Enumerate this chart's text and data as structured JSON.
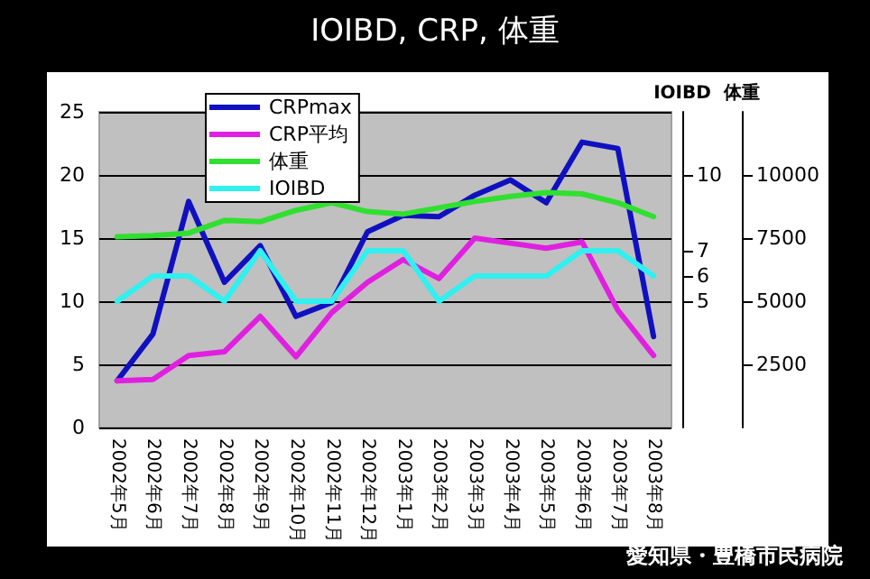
{
  "chart_data": {
    "type": "line",
    "title": "IOIBD, CRP, 体重",
    "categories": [
      "2002年5月",
      "2002年6月",
      "2002年7月",
      "2002年8月",
      "2002年9月",
      "2002年10月",
      "2002年11月",
      "2002年12月",
      "2003年1月",
      "2003年2月",
      "2003年3月",
      "2003年4月",
      "2003年5月",
      "2003年6月",
      "2003年7月",
      "2003年8月"
    ],
    "series": [
      {
        "name": "CRPmax",
        "color": "#1010c0",
        "values": [
          3.7,
          7.4,
          17.9,
          11.5,
          14.4,
          8.8,
          9.9,
          15.5,
          16.8,
          16.7,
          18.4,
          19.6,
          17.8,
          22.6,
          22.1,
          7.2
        ]
      },
      {
        "name": "CRP平均",
        "color": "#e020e0",
        "values": [
          3.7,
          3.8,
          5.7,
          6.0,
          8.8,
          5.6,
          9.1,
          11.5,
          13.3,
          11.8,
          15.0,
          14.6,
          14.2,
          14.7,
          9.3,
          5.7
        ]
      },
      {
        "name": "体重",
        "color": "#30e030",
        "axis": "y3",
        "values": [
          7550,
          7600,
          7700,
          8200,
          8150,
          8600,
          8900,
          8550,
          8450,
          8700,
          8950,
          9150,
          9300,
          9250,
          8900,
          8350
        ]
      },
      {
        "name": "IOIBD",
        "color": "#30f0f0",
        "axis": "y2",
        "values": [
          5,
          6,
          6,
          5,
          7,
          5,
          5,
          7,
          7,
          5,
          6,
          6,
          6,
          7,
          7,
          6
        ]
      }
    ],
    "ylim": [
      0,
      25
    ],
    "yticks": [
      0,
      5,
      10,
      15,
      20,
      25
    ],
    "y2label": "IOIBD",
    "y2lim": [
      0,
      12.5
    ],
    "y2ticks": [
      5,
      6,
      7,
      10
    ],
    "y3label": "体重",
    "y3lim": [
      0,
      12500
    ],
    "y3ticks": [
      2500,
      5000,
      7500,
      10000
    ],
    "grid": "y",
    "legend": "top left",
    "marker": "none",
    "line_style": "solid",
    "annotations": [
      "愛知県・豊橋市民病院"
    ]
  }
}
